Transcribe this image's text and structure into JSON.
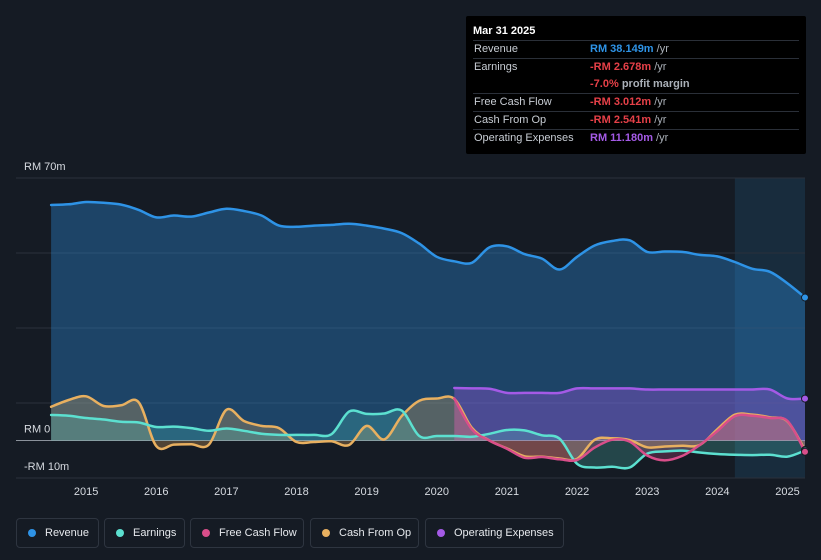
{
  "tooltip": {
    "date": "Mar 31 2025",
    "rows": [
      {
        "label": "Revenue",
        "value": "RM 38.149m",
        "unit": "/yr",
        "color": "#2e93e6"
      },
      {
        "label": "Earnings",
        "value": "-RM 2.678m",
        "unit": "/yr",
        "color": "#e64048"
      },
      {
        "label": "",
        "value": "-7.0%",
        "unit": "profit margin",
        "color": "#e64048"
      },
      {
        "label": "Free Cash Flow",
        "value": "-RM 3.012m",
        "unit": "/yr",
        "color": "#e64048"
      },
      {
        "label": "Cash From Op",
        "value": "-RM 2.541m",
        "unit": "/yr",
        "color": "#e64048"
      },
      {
        "label": "Operating Expenses",
        "value": "RM 11.180m",
        "unit": "/yr",
        "color": "#a45ae6"
      }
    ]
  },
  "legend": [
    {
      "label": "Revenue",
      "color": "#2e93e6"
    },
    {
      "label": "Earnings",
      "color": "#5ce0d0"
    },
    {
      "label": "Free Cash Flow",
      "color": "#d94e8a"
    },
    {
      "label": "Cash From Op",
      "color": "#e8b060"
    },
    {
      "label": "Operating Expenses",
      "color": "#a45ae6"
    }
  ],
  "chart_data": {
    "type": "area",
    "title": "",
    "xlabel": "",
    "ylabel": "",
    "ylim": [
      -10,
      70
    ],
    "y_tick_labels": [
      "RM 70m",
      "RM 0",
      "-RM 10m"
    ],
    "x_tick_labels": [
      "2015",
      "2016",
      "2017",
      "2018",
      "2019",
      "2020",
      "2021",
      "2022",
      "2023",
      "2024",
      "2025"
    ],
    "x_range": [
      2014.0,
      2025.25
    ],
    "forecast_shade_from": 2024.25,
    "series": [
      {
        "name": "Revenue",
        "color": "#2e93e6",
        "x": [
          2014.5,
          2014.75,
          2015.0,
          2015.25,
          2015.5,
          2015.75,
          2016.0,
          2016.25,
          2016.5,
          2016.75,
          2017.0,
          2017.25,
          2017.5,
          2017.75,
          2018.0,
          2018.25,
          2018.5,
          2018.75,
          2019.0,
          2019.25,
          2019.5,
          2019.75,
          2020.0,
          2020.25,
          2020.5,
          2020.75,
          2021.0,
          2021.25,
          2021.5,
          2021.75,
          2022.0,
          2022.25,
          2022.5,
          2022.75,
          2023.0,
          2023.25,
          2023.5,
          2023.75,
          2024.0,
          2024.25,
          2024.5,
          2024.75,
          2025.0,
          2025.25
        ],
        "values": [
          62.8,
          63.0,
          63.6,
          63.4,
          62.9,
          61.5,
          59.5,
          60.0,
          59.7,
          60.8,
          61.8,
          61.2,
          60.0,
          57.3,
          57.0,
          57.3,
          57.5,
          57.8,
          57.3,
          56.5,
          55.3,
          52.5,
          49.0,
          47.8,
          47.4,
          51.5,
          51.8,
          49.7,
          48.5,
          45.6,
          49.0,
          52.0,
          53.2,
          53.4,
          50.3,
          50.4,
          50.3,
          49.5,
          49.1,
          47.6,
          45.8,
          45.0,
          41.9,
          38.149
        ]
      },
      {
        "name": "Earnings",
        "color": "#5ce0d0",
        "x": [
          2014.5,
          2014.75,
          2015.0,
          2015.25,
          2015.5,
          2015.75,
          2016.0,
          2016.25,
          2016.5,
          2016.75,
          2017.0,
          2017.25,
          2017.5,
          2017.75,
          2018.0,
          2018.25,
          2018.5,
          2018.75,
          2019.0,
          2019.25,
          2019.5,
          2019.75,
          2020.0,
          2020.25,
          2020.5,
          2020.75,
          2021.0,
          2021.25,
          2021.5,
          2021.75,
          2022.0,
          2022.25,
          2022.5,
          2022.75,
          2023.0,
          2023.25,
          2023.5,
          2023.75,
          2024.0,
          2024.25,
          2024.5,
          2024.75,
          2025.0,
          2025.25
        ],
        "values": [
          6.8,
          6.6,
          6.0,
          5.6,
          5.0,
          4.8,
          3.6,
          3.7,
          3.3,
          2.6,
          3.2,
          2.6,
          1.8,
          1.5,
          1.5,
          1.5,
          1.7,
          7.7,
          7.1,
          7.2,
          8.0,
          1.2,
          1.2,
          1.2,
          1.0,
          1.8,
          2.8,
          2.7,
          1.4,
          0.5,
          -6.2,
          -7.2,
          -7.0,
          -7.2,
          -3.5,
          -2.9,
          -2.7,
          -3.2,
          -3.6,
          -3.8,
          -3.9,
          -3.8,
          -4.3,
          -2.678
        ]
      },
      {
        "name": "Free Cash Flow",
        "color": "#d94e8a",
        "x": [
          2020.25,
          2020.5,
          2020.75,
          2021.0,
          2021.25,
          2021.5,
          2021.75,
          2022.0,
          2022.25,
          2022.5,
          2022.75,
          2023.0,
          2023.25,
          2023.5,
          2023.75,
          2024.0,
          2024.25,
          2024.5,
          2024.75,
          2025.0,
          2025.25
        ],
        "values": [
          11.2,
          3.0,
          0.0,
          -2.2,
          -4.6,
          -4.4,
          -5.0,
          -5.2,
          -1.9,
          0.2,
          -0.3,
          -4.0,
          -5.3,
          -4.1,
          -1.2,
          2.5,
          6.5,
          6.6,
          6.0,
          5.2,
          -3.012
        ]
      },
      {
        "name": "Cash From Op",
        "color": "#e8b060",
        "x": [
          2014.5,
          2014.75,
          2015.0,
          2015.25,
          2015.5,
          2015.75,
          2016.0,
          2016.25,
          2016.5,
          2016.75,
          2017.0,
          2017.25,
          2017.5,
          2017.75,
          2018.0,
          2018.25,
          2018.5,
          2018.75,
          2019.0,
          2019.25,
          2019.5,
          2019.75,
          2020.0,
          2020.25,
          2020.5,
          2020.75,
          2021.0,
          2021.25,
          2021.5,
          2021.75,
          2022.0,
          2022.25,
          2022.5,
          2022.75,
          2023.0,
          2023.25,
          2023.5,
          2023.75,
          2024.0,
          2024.25,
          2024.5,
          2024.75,
          2025.0,
          2025.25
        ],
        "values": [
          9.0,
          10.8,
          11.8,
          9.2,
          9.4,
          10.2,
          -1.5,
          -1.1,
          -1.0,
          -1.1,
          8.2,
          5.2,
          3.9,
          3.3,
          -0.4,
          -0.4,
          -0.2,
          -1.2,
          3.9,
          0.3,
          6.5,
          10.6,
          11.2,
          11.1,
          3.4,
          0.0,
          -2.1,
          -4.2,
          -4.3,
          -4.8,
          -4.9,
          0.2,
          0.6,
          0.1,
          -1.8,
          -1.6,
          -1.4,
          -1.2,
          3.0,
          6.9,
          6.9,
          6.2,
          5.1,
          -2.541
        ]
      },
      {
        "name": "Operating Expenses",
        "color": "#a45ae6",
        "x": [
          2020.25,
          2020.5,
          2020.75,
          2021.0,
          2021.25,
          2021.5,
          2021.75,
          2022.0,
          2022.25,
          2022.5,
          2022.75,
          2023.0,
          2023.25,
          2023.5,
          2023.75,
          2024.0,
          2024.25,
          2024.5,
          2024.75,
          2025.0,
          2025.25
        ],
        "values": [
          14.0,
          13.9,
          13.8,
          12.7,
          12.7,
          12.7,
          12.7,
          13.9,
          13.9,
          13.9,
          13.9,
          13.6,
          13.6,
          13.6,
          13.6,
          13.6,
          13.6,
          13.6,
          13.6,
          11.2,
          11.18
        ]
      }
    ]
  }
}
